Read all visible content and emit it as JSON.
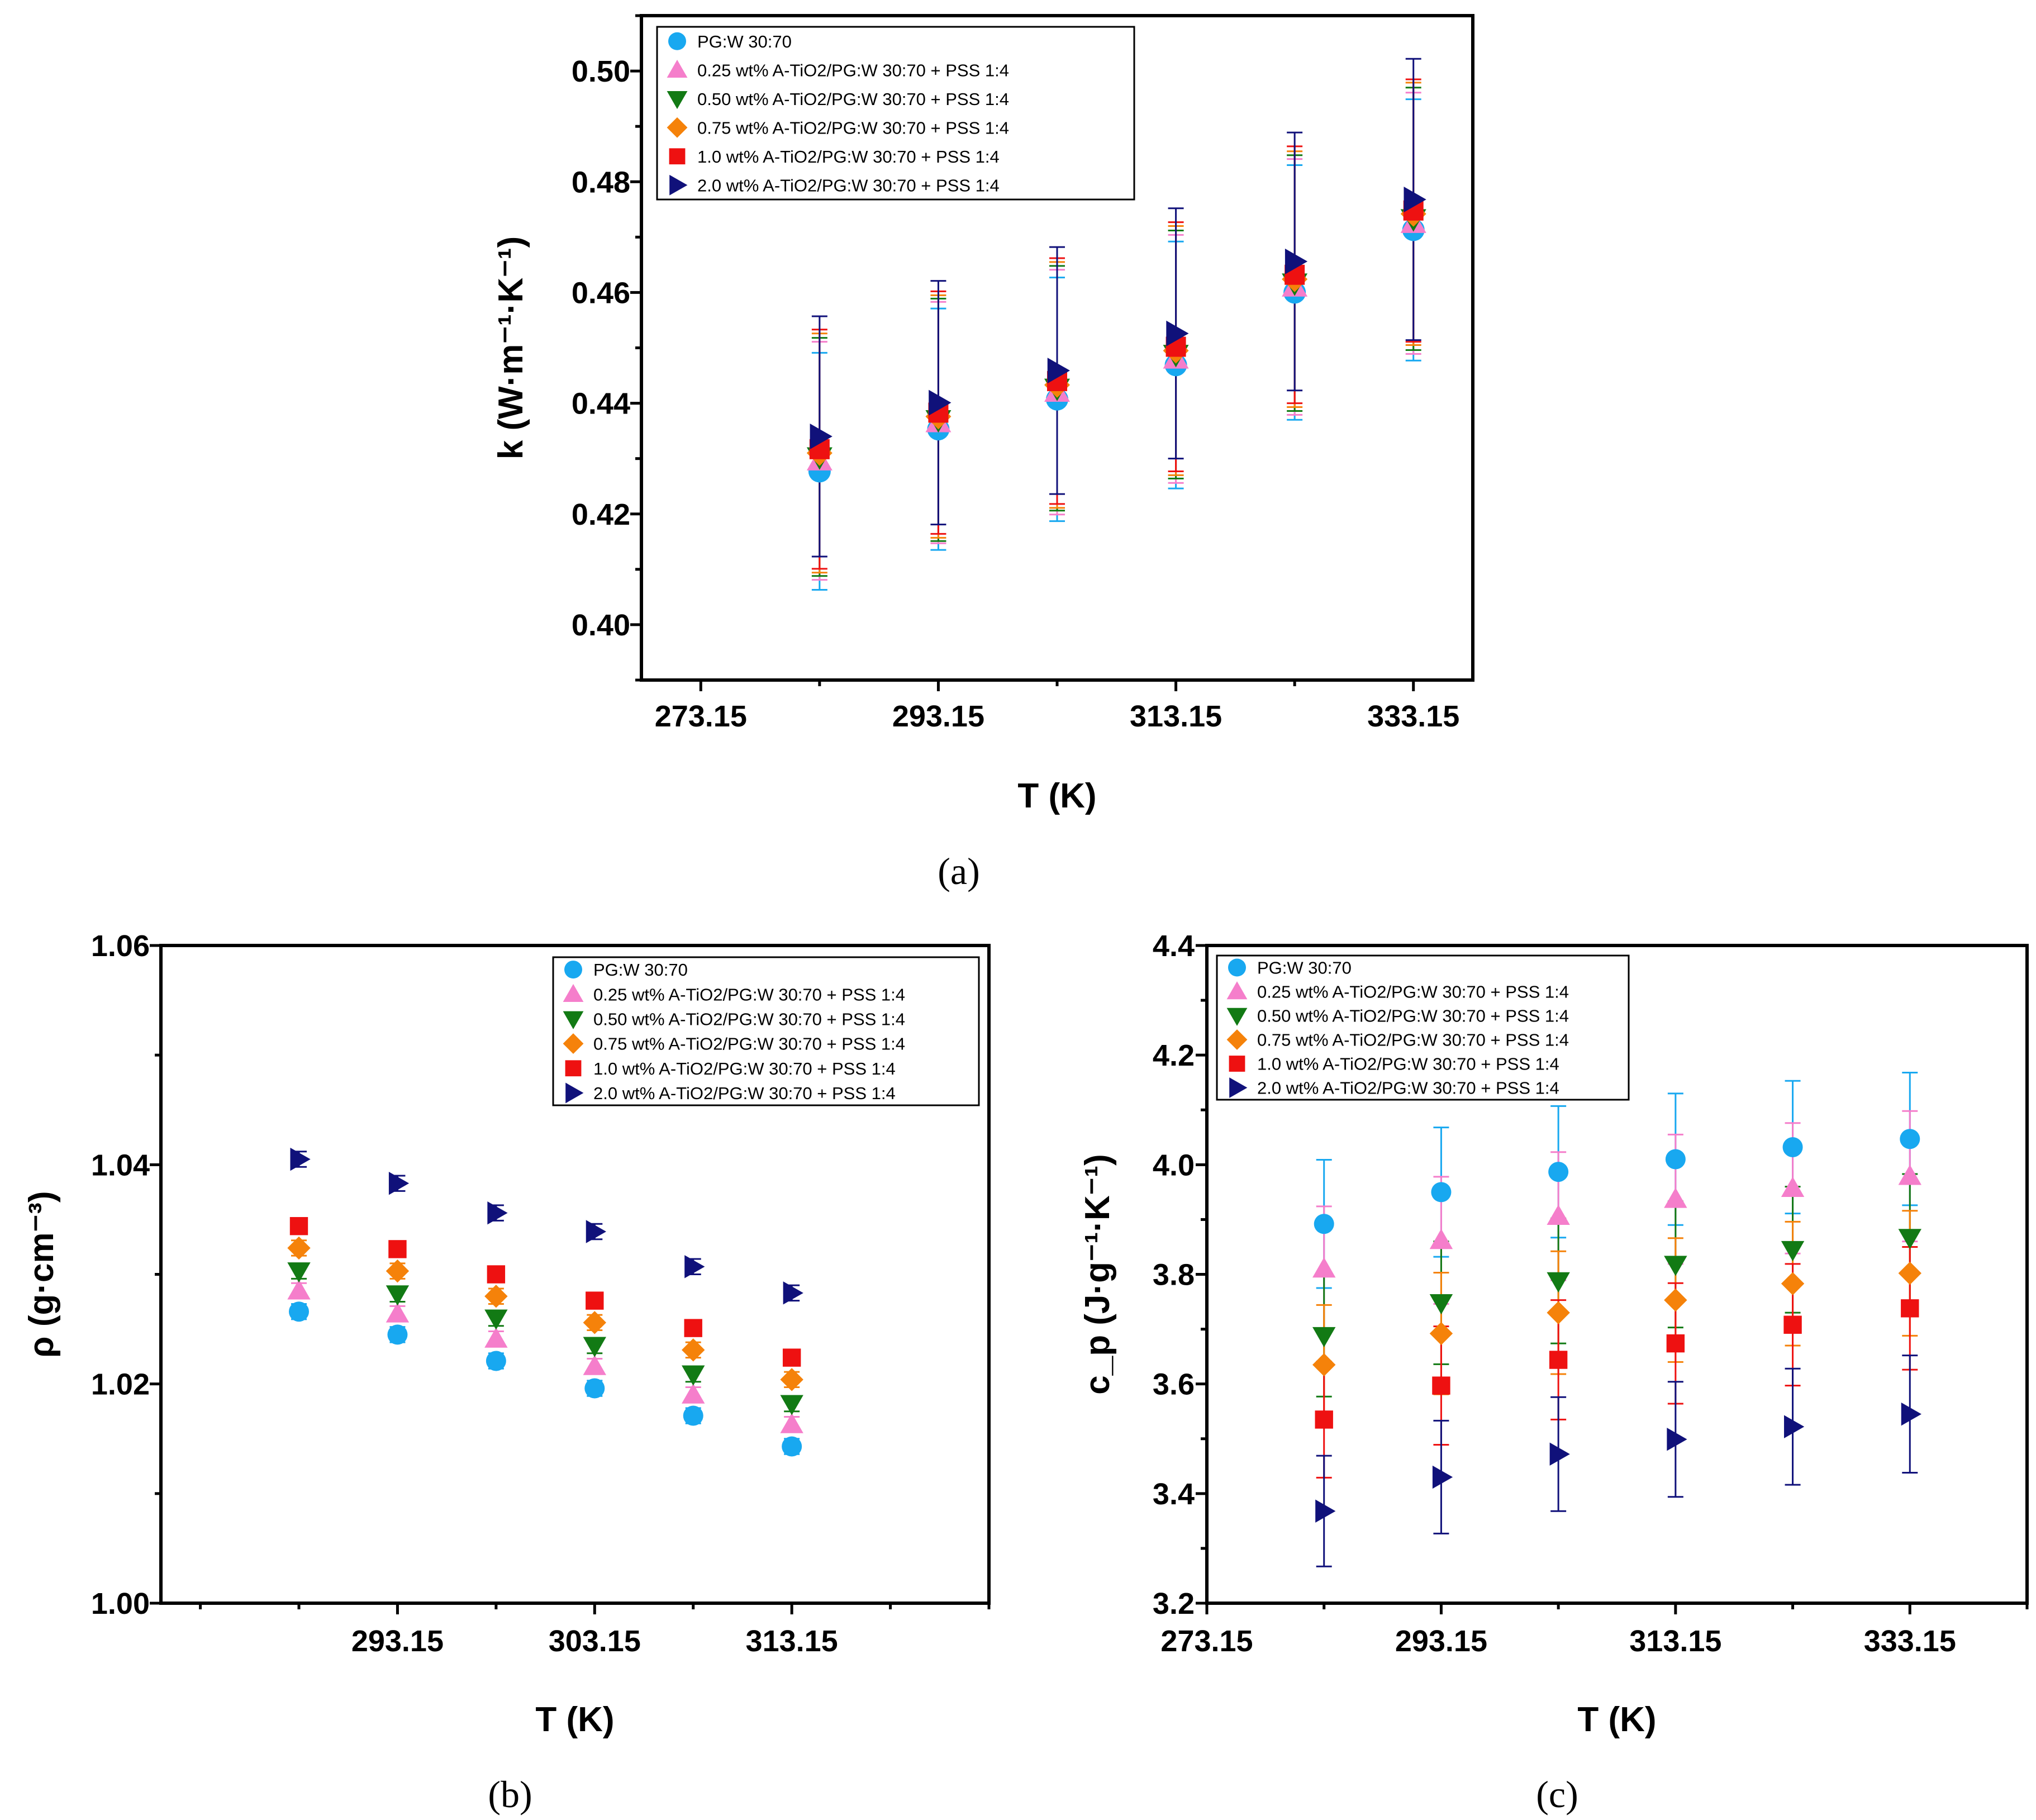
{
  "colors": {
    "series": [
      "#18a8f0",
      "#f57ecb",
      "#127a14",
      "#f5820a",
      "#ee1111",
      "#10117a"
    ],
    "axis": "#000000"
  },
  "legend_labels": [
    "PG:W 30:70",
    "0.25 wt% A-TiO2/PG:W 30:70 + PSS 1:4",
    "0.50 wt% A-TiO2/PG:W 30:70 + PSS 1:4",
    "0.75 wt% A-TiO2/PG:W 30:70 + PSS 1:4",
    "1.0 wt% A-TiO2/PG:W 30:70 + PSS 1:4",
    "2.0 wt% A-TiO2/PG:W 30:70 + PSS 1:4"
  ],
  "series_markers": [
    "circle",
    "triangle-up",
    "triangle-down",
    "diamond",
    "square",
    "triangle-right"
  ],
  "chart_data": [
    {
      "id": "a",
      "caption": "(a)",
      "type": "scatter",
      "xlabel": "T (K)",
      "ylabel": "k (W·m⁻¹·K⁻¹)",
      "xlim": [
        268.15,
        338.15
      ],
      "ylim": [
        0.39,
        0.51
      ],
      "xticks": [
        273.15,
        293.15,
        313.15,
        333.15
      ],
      "xtick_labels": [
        "273.15",
        "293.15",
        "313.15",
        "333.15"
      ],
      "yticks": [
        0.4,
        0.42,
        0.44,
        0.46,
        0.48,
        0.5
      ],
      "ytick_labels": [
        "0.40",
        "0.42",
        "0.44",
        "0.46",
        "0.48",
        "0.50"
      ],
      "legend_position": "top-left",
      "x": [
        283.15,
        293.15,
        303.15,
        313.15,
        323.15,
        333.15
      ],
      "series": [
        {
          "name": "PG:W 30:70",
          "values": [
            0.4277,
            0.4353,
            0.4407,
            0.4469,
            0.46,
            0.4713
          ],
          "errors": [
            0.0214,
            0.0218,
            0.022,
            0.0223,
            0.023,
            0.0236
          ]
        },
        {
          "name": "0.25 wt% A-TiO2/PG:W 30:70 + PSS 1:4",
          "values": [
            0.4296,
            0.4365,
            0.442,
            0.448,
            0.461,
            0.4725
          ],
          "errors": [
            0.0215,
            0.0218,
            0.0221,
            0.0224,
            0.0231,
            0.0236
          ]
        },
        {
          "name": "0.50 wt% A-TiO2/PG:W 30:70 + PSS 1:4",
          "values": [
            0.4303,
            0.437,
            0.4427,
            0.4488,
            0.4617,
            0.4733
          ],
          "errors": [
            0.0215,
            0.0219,
            0.0221,
            0.0224,
            0.0231,
            0.0237
          ]
        },
        {
          "name": "0.75 wt% A-TiO2/PG:W 30:70 + PSS 1:4",
          "values": [
            0.431,
            0.4376,
            0.4433,
            0.4495,
            0.4624,
            0.4742
          ],
          "errors": [
            0.0216,
            0.0219,
            0.0222,
            0.0225,
            0.0231,
            0.0237
          ]
        },
        {
          "name": "1.0 wt% A-TiO2/PG:W 30:70 + PSS 1:4",
          "values": [
            0.4317,
            0.4383,
            0.444,
            0.4502,
            0.4632,
            0.4748
          ],
          "errors": [
            0.0216,
            0.0219,
            0.0222,
            0.0225,
            0.0232,
            0.0237
          ]
        },
        {
          "name": "2.0 wt% A-TiO2/PG:W 30:70 + PSS 1:4",
          "values": [
            0.434,
            0.4401,
            0.4459,
            0.4526,
            0.4656,
            0.4768
          ],
          "errors": [
            0.0217,
            0.022,
            0.0223,
            0.0226,
            0.0233,
            0.0254
          ]
        }
      ]
    },
    {
      "id": "b",
      "caption": "(b)",
      "type": "scatter",
      "xlabel": "T (K)",
      "ylabel": "ρ (g·cm⁻³)",
      "xlim": [
        281.15,
        323.15
      ],
      "ylim": [
        1.0,
        1.06
      ],
      "xticks": [
        293.15,
        303.15,
        313.15
      ],
      "xtick_labels": [
        "293.15",
        "303.15",
        "313.15"
      ],
      "yticks": [
        1.0,
        1.02,
        1.04,
        1.06
      ],
      "ytick_labels": [
        "1.00",
        "1.02",
        "1.04",
        "1.06"
      ],
      "legend_position": "top-right",
      "x": [
        288.15,
        293.15,
        298.15,
        303.15,
        308.15,
        313.15
      ],
      "series": [
        {
          "name": "PG:W 30:70",
          "values": [
            1.0266,
            1.0245,
            1.0221,
            1.0196,
            1.0171,
            1.0143
          ],
          "errors": [
            0.0007,
            0.0007,
            0.0007,
            0.0007,
            0.0007,
            0.0007
          ]
        },
        {
          "name": "0.25 wt% A-TiO2/PG:W 30:70 + PSS 1:4",
          "values": [
            1.0285,
            1.0264,
            1.0241,
            1.0216,
            1.019,
            1.0163
          ],
          "errors": [
            0.0007,
            0.0007,
            0.0007,
            0.0007,
            0.0007,
            0.0007
          ]
        },
        {
          "name": "0.50 wt% A-TiO2/PG:W 30:70 + PSS 1:4",
          "values": [
            1.0303,
            1.0282,
            1.026,
            1.0235,
            1.0209,
            1.0182
          ],
          "errors": [
            0.0007,
            0.0007,
            0.0007,
            0.0007,
            0.0007,
            0.0007
          ]
        },
        {
          "name": "0.75 wt% A-TiO2/PG:W 30:70 + PSS 1:4",
          "values": [
            1.0324,
            1.0303,
            1.028,
            1.0256,
            1.0231,
            1.0204
          ],
          "errors": [
            0.0007,
            0.0007,
            0.0007,
            0.0007,
            0.0007,
            0.0007
          ]
        },
        {
          "name": "1.0 wt% A-TiO2/PG:W 30:70 + PSS 1:4",
          "values": [
            1.0344,
            1.0323,
            1.03,
            1.0276,
            1.0251,
            1.0224
          ],
          "errors": [
            0.0007,
            0.0007,
            0.0007,
            0.0007,
            0.0007,
            0.0007
          ]
        },
        {
          "name": "2.0 wt% A-TiO2/PG:W 30:70 + PSS 1:4",
          "values": [
            1.0405,
            1.0383,
            1.0356,
            1.0339,
            1.0307,
            1.0283
          ],
          "errors": [
            0.0007,
            0.0007,
            0.0007,
            0.0007,
            0.0007,
            0.0007
          ]
        }
      ]
    },
    {
      "id": "c",
      "caption": "(c)",
      "type": "scatter",
      "xlabel": "T (K)",
      "ylabel": "c_p (J·g⁻¹·K⁻¹)",
      "xlim": [
        273.15,
        343.15
      ],
      "ylim": [
        3.2,
        4.4
      ],
      "xticks": [
        273.15,
        293.15,
        313.15,
        333.15
      ],
      "xtick_labels": [
        "273.15",
        "293.15",
        "313.15",
        "333.15"
      ],
      "yticks": [
        3.2,
        3.4,
        3.6,
        3.8,
        4.0,
        4.2,
        4.4
      ],
      "ytick_labels": [
        "3.2",
        "3.4",
        "3.6",
        "3.8",
        "4.0",
        "4.2",
        "4.4"
      ],
      "legend_position": "top-left",
      "x": [
        283.15,
        293.15,
        303.15,
        313.15,
        323.15,
        333.15
      ],
      "series": [
        {
          "name": "PG:W 30:70",
          "values": [
            3.892,
            3.95,
            3.987,
            4.01,
            4.032,
            4.047
          ],
          "errors": [
            0.117,
            0.118,
            0.12,
            0.12,
            0.121,
            0.121
          ]
        },
        {
          "name": "0.25 wt% A-TiO2/PG:W 30:70 + PSS 1:4",
          "values": [
            3.81,
            3.862,
            3.906,
            3.937,
            3.957,
            3.979
          ],
          "errors": [
            0.114,
            0.116,
            0.117,
            0.118,
            0.119,
            0.119
          ]
        },
        {
          "name": "0.50 wt% A-TiO2/PG:W 30:70 + PSS 1:4",
          "values": [
            3.688,
            3.748,
            3.788,
            3.818,
            3.845,
            3.867
          ],
          "errors": [
            0.111,
            0.112,
            0.114,
            0.115,
            0.115,
            0.116
          ]
        },
        {
          "name": "0.75 wt% A-TiO2/PG:W 30:70 + PSS 1:4",
          "values": [
            3.635,
            3.692,
            3.73,
            3.753,
            3.783,
            3.802
          ],
          "errors": [
            0.109,
            0.111,
            0.112,
            0.113,
            0.113,
            0.114
          ]
        },
        {
          "name": "1.0 wt% A-TiO2/PG:W 30:70 + PSS 1:4",
          "values": [
            3.535,
            3.597,
            3.644,
            3.674,
            3.708,
            3.738
          ],
          "errors": [
            0.106,
            0.108,
            0.109,
            0.11,
            0.111,
            0.112
          ]
        },
        {
          "name": "2.0 wt% A-TiO2/PG:W 30:70 + PSS 1:4",
          "values": [
            3.368,
            3.43,
            3.472,
            3.499,
            3.522,
            3.545
          ],
          "errors": [
            0.101,
            0.103,
            0.104,
            0.105,
            0.106,
            0.107
          ]
        }
      ]
    }
  ]
}
